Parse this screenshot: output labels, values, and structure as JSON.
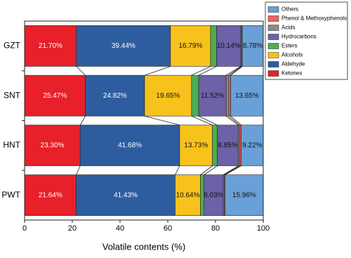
{
  "chart_data": {
    "type": "stacked_barh",
    "xlabel": "Volatile contents (%)",
    "categories": [
      "GZT",
      "SNT",
      "HNT",
      "PWT"
    ],
    "xlim": [
      0,
      100
    ],
    "xticks": [
      0,
      20,
      40,
      60,
      80,
      100
    ],
    "series": [
      {
        "name": "Ketones",
        "color": "#e8202a",
        "values": [
          21.7,
          25.47,
          23.3,
          21.64
        ],
        "value_labels": [
          "21.70%",
          "25.47%",
          "23.30%",
          "21.64%"
        ]
      },
      {
        "name": "Aldehyde",
        "color": "#2e5d9f",
        "values": [
          39.44,
          24.82,
          41.68,
          41.43
        ],
        "value_labels": [
          "39.44%",
          "24.82%",
          "41.68%",
          "41.43%"
        ]
      },
      {
        "name": "Alcohols",
        "color": "#f8c21c",
        "values": [
          16.79,
          19.65,
          13.73,
          10.64
        ],
        "value_labels": [
          "16.79%",
          "19.65%",
          "13.73%",
          "10.64%"
        ]
      },
      {
        "name": "Esters",
        "color": "#4caf50",
        "values": [
          2.5,
          3.0,
          2.0,
          1.5
        ]
      },
      {
        "name": "Hydrocarbons",
        "color": "#6b62a8",
        "values": [
          10.14,
          11.52,
          8.85,
          8.03
        ],
        "value_labels": [
          "10.14%",
          "11.52%",
          "8.85%",
          "8.03%"
        ]
      },
      {
        "name": "Acids",
        "color": "#8a8a8a",
        "values": [
          0.35,
          1.1,
          0.6,
          0.5
        ]
      },
      {
        "name": "Phenol & Methoxyphenols",
        "color": "#f06060",
        "values": [
          0.3,
          0.79,
          0.62,
          0.3
        ]
      },
      {
        "name": "Others",
        "color": "#6aa0d8",
        "values": [
          8.78,
          13.65,
          9.22,
          15.96
        ],
        "value_labels": [
          "8.78%",
          "13.65%",
          "9.22%",
          "15.96%"
        ]
      }
    ]
  }
}
